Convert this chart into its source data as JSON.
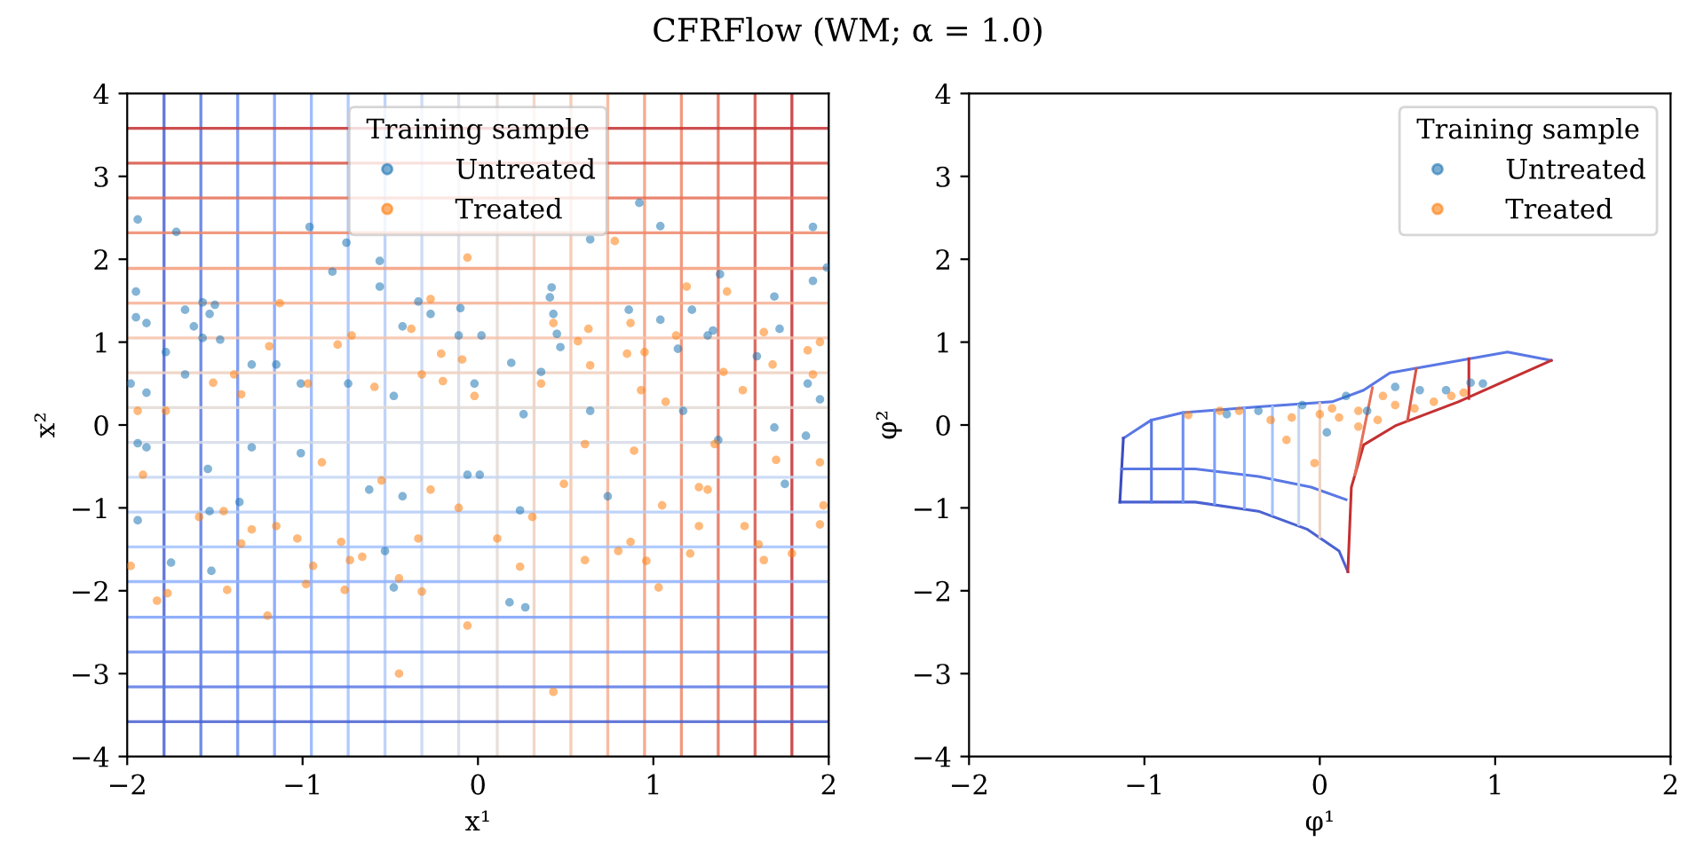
{
  "chart_data": [
    {
      "type": "scatter",
      "title": "CFRFlow (WM; α = 1.0)",
      "xlabel": "x¹",
      "ylabel": "x²",
      "xlim": [
        -2,
        2
      ],
      "ylim": [
        -4,
        4
      ],
      "xticks": [
        -2,
        -1,
        0,
        1,
        2
      ],
      "yticks": [
        -4,
        -3,
        -2,
        -1,
        0,
        1,
        2,
        3,
        4
      ],
      "grid": false,
      "legend": "top",
      "legend_title": "Training sample",
      "marker": "circle",
      "series": [
        {
          "name": "Untreated",
          "color": "#1f77b4",
          "x": [
            -1.94,
            -1.72,
            -1.95,
            -1.95,
            -1.89,
            -1.57,
            -1.5,
            -1.53,
            -1.67,
            -1.62,
            -1.78,
            -1.57,
            -1.47,
            -0.96,
            -0.83,
            -0.75,
            -0.56,
            -0.56,
            -0.34,
            -0.27,
            -0.43,
            -0.1,
            -0.11,
            0.02,
            0.61,
            0.64,
            0.42,
            0.41,
            0.43,
            0.45,
            0.47,
            0.92,
            1.04,
            0.86,
            1.04,
            1.22,
            1.34,
            1.38,
            1.91,
            1.91,
            1.99,
            1.69,
            1.72,
            1.59,
            0.19,
            1.31,
            1.14,
            -1.98,
            -1.89,
            -1.67,
            -1.29,
            -1.15,
            -1.01,
            -0.74,
            -0.48,
            -0.02,
            0.36,
            0.64,
            1.17,
            1.88,
            1.95,
            0.26,
            -1.94,
            -1.89,
            -1.94,
            -1.75,
            -1.52,
            -1.53,
            -1.36,
            -1.54,
            -1.01,
            -0.53,
            -0.48,
            -0.62,
            -0.43,
            -0.06,
            0.01,
            0.24,
            0.18,
            0.27,
            0.74,
            1.37,
            1.75,
            1.87,
            1.69,
            -1.29
          ],
          "values": [
            2.48,
            2.33,
            1.61,
            1.3,
            1.23,
            1.48,
            1.45,
            1.34,
            1.39,
            1.19,
            0.88,
            1.05,
            1.03,
            2.39,
            1.85,
            2.2,
            1.98,
            1.67,
            1.49,
            1.34,
            1.19,
            1.41,
            1.08,
            1.08,
            null,
            2.24,
            1.66,
            1.54,
            1.34,
            1.1,
            0.94,
            2.68,
            2.4,
            1.39,
            1.27,
            1.39,
            1.14,
            1.82,
            2.39,
            1.74,
            1.9,
            1.55,
            1.16,
            0.83,
            0.75,
            1.08,
            0.92,
            0.5,
            0.39,
            0.61,
            0.73,
            0.73,
            0.5,
            0.5,
            0.35,
            0.5,
            0.64,
            0.17,
            0.17,
            0.5,
            0.31,
            0.13,
            -0.22,
            -0.27,
            -1.15,
            -1.66,
            -1.76,
            -1.04,
            -0.93,
            -0.53,
            -0.34,
            -1.52,
            -1.96,
            -0.78,
            -0.86,
            -0.6,
            -0.6,
            -1.03,
            -2.14,
            -2.2,
            -0.86,
            -0.18,
            -0.71,
            -0.13,
            -0.03,
            -0.27
          ]
        },
        {
          "name": "Treated",
          "color": "#ff7f0e",
          "x": [
            -1.94,
            -1.78,
            -1.51,
            -1.39,
            -1.35,
            -1.13,
            -1.19,
            -0.97,
            -0.8,
            -0.72,
            -0.59,
            -0.38,
            -0.27,
            -0.21,
            -0.32,
            -0.2,
            -0.06,
            -0.09,
            -0.02,
            0.43,
            0.36,
            0.57,
            0.63,
            0.64,
            0.78,
            0.87,
            0.85,
            0.95,
            1.19,
            1.13,
            1.42,
            1.4,
            1.63,
            1.68,
            1.88,
            1.95,
            1.91,
            1.07,
            1.51,
            0.93,
            -1.98,
            -1.83,
            -1.77,
            -1.91,
            -1.59,
            -1.43,
            -1.45,
            -1.35,
            -1.29,
            -1.2,
            -1.15,
            -1.03,
            -0.98,
            -0.94,
            -0.89,
            -0.78,
            -0.76,
            -0.73,
            -0.66,
            -0.55,
            -0.45,
            -0.45,
            -0.32,
            -0.34,
            -0.27,
            -0.11,
            -0.06,
            0.11,
            0.24,
            0.31,
            0.43,
            0.49,
            0.61,
            0.8,
            0.87,
            0.96,
            1.03,
            1.05,
            1.21,
            1.26,
            1.26,
            1.35,
            1.52,
            1.63,
            1.6,
            1.7,
            1.79,
            1.95,
            1.97,
            1.95,
            1.31,
            0.89,
            0.61
          ],
          "values": [
            0.17,
            0.17,
            0.51,
            0.61,
            0.37,
            1.47,
            0.95,
            0.5,
            0.97,
            1.08,
            0.46,
            1.16,
            1.52,
            0.86,
            0.61,
            0.53,
            2.02,
            0.79,
            0.35,
            1.23,
            0.5,
            1.01,
            1.16,
            0.72,
            2.22,
            1.23,
            0.86,
            0.88,
            1.67,
            1.08,
            1.61,
            0.64,
            1.12,
            0.73,
            0.9,
            1.0,
            0.61,
            0.28,
            0.42,
            0.42,
            -1.7,
            -2.12,
            -2.03,
            -0.6,
            -1.11,
            -1.99,
            -1.04,
            -1.43,
            -1.26,
            -2.3,
            -1.22,
            -1.37,
            -1.92,
            -1.7,
            -0.45,
            -1.41,
            -1.99,
            -1.63,
            -1.59,
            -0.67,
            -3.0,
            -1.85,
            -2.01,
            -1.37,
            -0.78,
            -1.0,
            -2.42,
            -1.37,
            -1.71,
            -1.11,
            -3.22,
            -0.71,
            -1.63,
            -1.52,
            -1.41,
            -1.64,
            -1.96,
            -0.97,
            -1.55,
            -1.22,
            -0.75,
            -0.23,
            -1.22,
            -1.63,
            -1.44,
            -0.42,
            -1.55,
            -1.2,
            -0.97,
            -0.45,
            -0.78,
            -0.31,
            -0.23
          ]
        }
      ],
      "ref_lines": [
        {
          "axis": "x",
          "value": -1.79,
          "color": "#4a62d1"
        },
        {
          "axis": "x",
          "value": -1.58,
          "color": "#5a78e4"
        },
        {
          "axis": "x",
          "value": -1.37,
          "color": "#6c8ff1"
        },
        {
          "axis": "x",
          "value": -1.16,
          "color": "#7da0f9"
        },
        {
          "axis": "x",
          "value": -0.95,
          "color": "#91b2fd"
        },
        {
          "axis": "x",
          "value": -0.74,
          "color": "#a3c2fe"
        },
        {
          "axis": "x",
          "value": -0.53,
          "color": "#b5cdf8"
        },
        {
          "axis": "x",
          "value": -0.32,
          "color": "#c5d6f2"
        },
        {
          "axis": "x",
          "value": -0.11,
          "color": "#d5dbe6"
        },
        {
          "axis": "x",
          "value": 0.11,
          "color": "#e2d9d3"
        },
        {
          "axis": "x",
          "value": 0.32,
          "color": "#eed0c0"
        },
        {
          "axis": "x",
          "value": 0.53,
          "color": "#f4c3ab"
        },
        {
          "axis": "x",
          "value": 0.74,
          "color": "#f6b094"
        },
        {
          "axis": "x",
          "value": 0.95,
          "color": "#f39c7d"
        },
        {
          "axis": "x",
          "value": 1.16,
          "color": "#ef886b"
        },
        {
          "axis": "x",
          "value": 1.37,
          "color": "#e57058"
        },
        {
          "axis": "x",
          "value": 1.58,
          "color": "#d75445"
        },
        {
          "axis": "x",
          "value": 1.79,
          "color": "#c43032"
        },
        {
          "axis": "y",
          "value": -3.58,
          "color": "#4a62d1"
        },
        {
          "axis": "y",
          "value": -3.16,
          "color": "#5a78e4"
        },
        {
          "axis": "y",
          "value": -2.74,
          "color": "#6c8ff1"
        },
        {
          "axis": "y",
          "value": -2.32,
          "color": "#7da0f9"
        },
        {
          "axis": "y",
          "value": -1.89,
          "color": "#91b2fd"
        },
        {
          "axis": "y",
          "value": -1.47,
          "color": "#a3c2fe"
        },
        {
          "axis": "y",
          "value": -1.05,
          "color": "#b5cdf8"
        },
        {
          "axis": "y",
          "value": -0.63,
          "color": "#c5d6f2"
        },
        {
          "axis": "y",
          "value": -0.21,
          "color": "#d5dbe6"
        },
        {
          "axis": "y",
          "value": 0.21,
          "color": "#e2d9d3"
        },
        {
          "axis": "y",
          "value": 0.63,
          "color": "#eed0c0"
        },
        {
          "axis": "y",
          "value": 1.05,
          "color": "#f4c3ab"
        },
        {
          "axis": "y",
          "value": 1.47,
          "color": "#f6b094"
        },
        {
          "axis": "y",
          "value": 1.89,
          "color": "#f39c7d"
        },
        {
          "axis": "y",
          "value": 2.32,
          "color": "#ef886b"
        },
        {
          "axis": "y",
          "value": 2.74,
          "color": "#e57058"
        },
        {
          "axis": "y",
          "value": 3.16,
          "color": "#d75445"
        },
        {
          "axis": "y",
          "value": 3.58,
          "color": "#c43032"
        }
      ]
    },
    {
      "type": "scatter",
      "xlabel": "φ¹",
      "ylabel": "φ²",
      "xlim": [
        -2,
        2
      ],
      "ylim": [
        -4,
        4
      ],
      "xticks": [
        -2,
        -1,
        0,
        1,
        2
      ],
      "yticks": [
        -4,
        -3,
        -2,
        -1,
        0,
        1,
        2,
        3,
        4
      ],
      "grid": false,
      "legend": "top right",
      "legend_title": "Training sample",
      "marker": "circle",
      "series": [
        {
          "type": "line",
          "marker": "none",
          "color": "#5a78e4",
          "x": [
            -1.12,
            -0.96,
            -0.78,
            -0.35,
            0.07,
            0.25,
            0.4,
            0.72,
            1.07,
            1.32
          ],
          "values": [
            -0.16,
            0.06,
            0.15,
            0.22,
            0.28,
            0.42,
            0.63,
            0.75,
            0.88,
            0.78
          ]
        },
        {
          "type": "line",
          "marker": "none",
          "color": "#4a62d1",
          "x": [
            -1.14,
            -0.71,
            -0.35,
            -0.07,
            0.11,
            0.16
          ],
          "values": [
            -0.93,
            -0.93,
            -1.04,
            -1.26,
            -1.52,
            -1.77
          ]
        },
        {
          "type": "line",
          "marker": "none",
          "color": "#c43032",
          "x": [
            0.16,
            0.18,
            0.25,
            0.43,
            0.79,
            1.32
          ],
          "values": [
            -1.77,
            -0.75,
            -0.24,
            -0.01,
            0.28,
            0.78
          ]
        },
        {
          "type": "line",
          "marker": "none",
          "color": "#3b4cc0",
          "x": [
            -1.14,
            -1.12
          ],
          "values": [
            -0.93,
            -0.16
          ]
        },
        {
          "type": "line",
          "marker": "none",
          "color": "#5a78e4",
          "x": [
            -1.13,
            -0.71,
            -0.35,
            -0.05,
            0.15
          ],
          "values": [
            -0.53,
            -0.53,
            -0.62,
            -0.75,
            -0.9
          ]
        },
        {
          "type": "line",
          "marker": "none",
          "color": "#5a78e4",
          "x": [
            -0.96,
            -0.96
          ],
          "values": [
            0.06,
            -0.93
          ]
        },
        {
          "type": "line",
          "marker": "none",
          "color": "#6c8ff1",
          "x": [
            -0.78,
            -0.78
          ],
          "values": [
            0.15,
            -0.93
          ]
        },
        {
          "type": "line",
          "marker": "none",
          "color": "#7da0f9",
          "x": [
            -0.6,
            -0.6
          ],
          "values": [
            0.18,
            -0.95
          ]
        },
        {
          "type": "line",
          "marker": "none",
          "color": "#91b2fd",
          "x": [
            -0.43,
            -0.43
          ],
          "values": [
            0.2,
            -1.0
          ]
        },
        {
          "type": "line",
          "marker": "none",
          "color": "#a3c2fe",
          "x": [
            -0.27,
            -0.27
          ],
          "values": [
            0.22,
            -1.08
          ]
        },
        {
          "type": "line",
          "marker": "none",
          "color": "#c5d6f2",
          "x": [
            -0.12,
            -0.12
          ],
          "values": [
            0.24,
            -1.2
          ]
        },
        {
          "type": "line",
          "marker": "none",
          "color": "#eed0c0",
          "x": [
            0.0,
            0.0
          ],
          "values": [
            0.26,
            -1.35
          ]
        },
        {
          "type": "line",
          "marker": "none",
          "color": "#e57058",
          "x": [
            0.3,
            0.2
          ],
          "values": [
            0.45,
            -0.6
          ]
        },
        {
          "type": "line",
          "marker": "none",
          "color": "#d75445",
          "x": [
            0.55,
            0.5
          ],
          "values": [
            0.68,
            0.05
          ]
        },
        {
          "type": "line",
          "marker": "none",
          "color": "#c43032",
          "x": [
            0.85,
            0.85
          ],
          "values": [
            0.8,
            0.32
          ]
        },
        {
          "name": "Untreated",
          "color": "#1f77b4",
          "x": [
            -0.1,
            0.04,
            0.15,
            0.43,
            0.57,
            0.72,
            0.86,
            0.93,
            -0.35,
            -0.53,
            0.27
          ],
          "values": [
            0.24,
            -0.09,
            0.35,
            0.46,
            0.42,
            0.42,
            0.51,
            0.5,
            0.17,
            0.13,
            0.17
          ]
        },
        {
          "name": "Treated",
          "color": "#ff7f0e",
          "x": [
            -0.75,
            -0.57,
            -0.46,
            -0.28,
            -0.19,
            -0.16,
            -0.03,
            0.0,
            0.11,
            0.22,
            0.33,
            0.43,
            0.54,
            0.65,
            0.75,
            0.82,
            0.36,
            0.07,
            0.22
          ],
          "values": [
            0.12,
            0.17,
            0.17,
            0.06,
            -0.18,
            0.09,
            -0.46,
            0.13,
            0.09,
            0.17,
            0.06,
            0.24,
            0.2,
            0.28,
            0.35,
            0.39,
            0.35,
            0.2,
            -0.02
          ]
        }
      ]
    }
  ]
}
